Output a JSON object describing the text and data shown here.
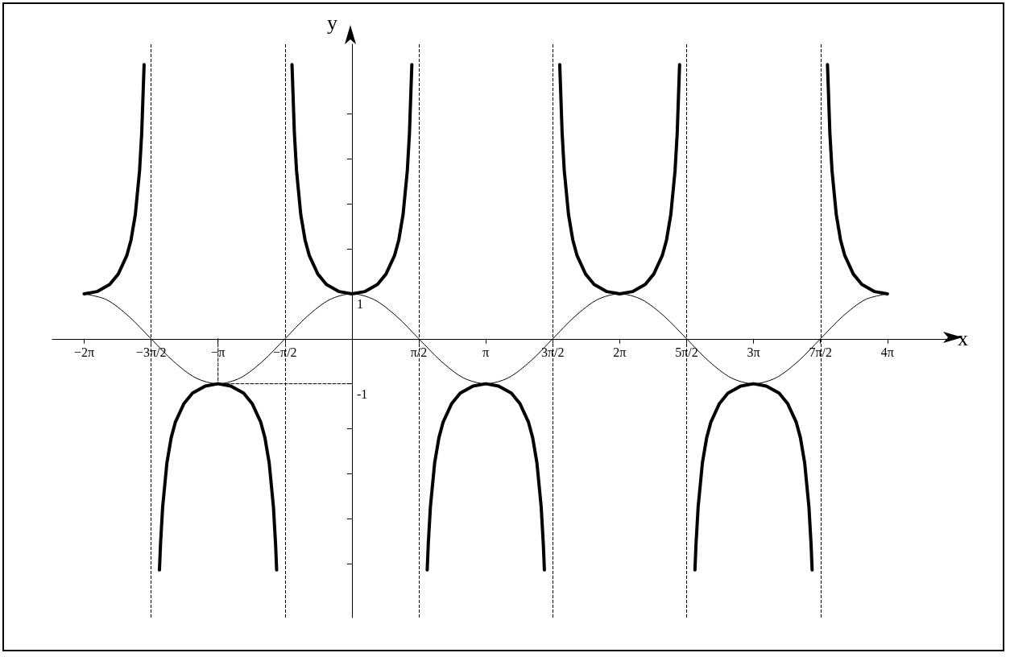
{
  "chart_data": {
    "type": "line",
    "xlabel": "x",
    "ylabel": "y",
    "xlim": [
      -7.03,
      13.95
    ],
    "ylim": [
      -6.2,
      6.55
    ],
    "xticks": [
      {
        "value": -6.2832,
        "label": "−2π"
      },
      {
        "value": -4.7124,
        "label": "−3π/2"
      },
      {
        "value": -3.1416,
        "label": "−π"
      },
      {
        "value": -1.5708,
        "label": "−π/2"
      },
      {
        "value": 1.5708,
        "label": "π/2"
      },
      {
        "value": 3.1416,
        "label": "π"
      },
      {
        "value": 4.7124,
        "label": "3π/2"
      },
      {
        "value": 6.2832,
        "label": "2π"
      },
      {
        "value": 7.854,
        "label": "5π/2"
      },
      {
        "value": 9.4248,
        "label": "3π"
      },
      {
        "value": 10.9956,
        "label": "7π/2"
      },
      {
        "value": 12.5664,
        "label": "4π"
      }
    ],
    "yticks": [
      {
        "value": -5,
        "label": null
      },
      {
        "value": -4,
        "label": null
      },
      {
        "value": -3,
        "label": null
      },
      {
        "value": -2,
        "label": null
      },
      {
        "value": -1,
        "label": "-1"
      },
      {
        "value": 1,
        "label": "1"
      },
      {
        "value": 2,
        "label": null
      },
      {
        "value": 3,
        "label": null
      },
      {
        "value": 4,
        "label": null
      },
      {
        "value": 5,
        "label": null
      }
    ],
    "grid": false,
    "marker": "none",
    "series": [
      {
        "color": "#000000",
        "line_style": "solid",
        "x": [
          -6.2832,
          -5.7596,
          -5.236,
          -4.7124,
          -4.1888,
          -3.6652,
          -3.1416,
          -2.618,
          -2.0944,
          -1.5708,
          -1.0472,
          -0.5236,
          0,
          0.5236,
          1.0472,
          1.5708,
          2.0944,
          2.618,
          3.1416,
          3.6652,
          4.1888,
          4.7124,
          5.236,
          5.7596,
          6.2832,
          6.8068,
          7.3304,
          7.854,
          8.3776,
          8.9012,
          9.4248,
          9.9484,
          10.472,
          10.9956,
          11.5192,
          12.0428,
          12.5664
        ],
        "values": [
          1,
          0.87,
          0.5,
          0,
          -0.5,
          -0.87,
          -1,
          -0.87,
          -0.5,
          0,
          0.5,
          0.87,
          1,
          0.87,
          0.5,
          0,
          -0.5,
          -0.87,
          -1,
          -0.87,
          -0.5,
          0,
          0.5,
          0.87,
          1,
          0.87,
          0.5,
          0,
          -0.5,
          -0.87,
          -1,
          -0.87,
          -0.5,
          0,
          0.5,
          0.87,
          1
        ]
      },
      {
        "color": "#000000",
        "line_style": "solid",
        "x": [
          -6.2832,
          -5.9832,
          -5.6832,
          -5.4832,
          -5.2832,
          -5.1832,
          -5.0832,
          -4.9832,
          -4.9332,
          -4.8769,
          -4.7124,
          -4.5166,
          -4.4916,
          -4.4416,
          -4.3416,
          -4.2416,
          -4.1416,
          -3.9416,
          -3.7416,
          -3.4416,
          -3.1416,
          -2.8416,
          -2.5416,
          -2.3416,
          -2.1416,
          -2.0416,
          -1.9416,
          -1.8416,
          -1.7916,
          -1.7666,
          -1.5708,
          -1.4063,
          -1.35,
          -1.3,
          -1.2,
          -1.1,
          -1.0,
          -0.8,
          -0.6,
          -0.3,
          0,
          0.3,
          0.6,
          0.8,
          1.0,
          1.1,
          1.2,
          1.3,
          1.35,
          1.4063,
          1.5708,
          1.7666,
          1.7916,
          1.8416,
          1.9416,
          2.0416,
          2.1416,
          2.3416,
          2.5416,
          2.8416,
          3.1416,
          3.4416,
          3.7416,
          3.9416,
          4.1416,
          4.2416,
          4.3416,
          4.4416,
          4.4916,
          4.5166,
          4.7124,
          4.8769,
          4.9332,
          4.9832,
          5.0832,
          5.1832,
          5.2832,
          5.4832,
          5.6832,
          5.9832,
          6.2832,
          6.5832,
          6.8832,
          7.0832,
          7.2832,
          7.3832,
          7.4832,
          7.5832,
          7.6332,
          7.6895,
          7.854,
          8.0498,
          8.0748,
          8.1248,
          8.2248,
          8.3248,
          8.4248,
          8.6248,
          8.8248,
          9.1248,
          9.4248,
          9.7248,
          10.0248,
          10.2248,
          10.4248,
          10.5248,
          10.6248,
          10.7248,
          10.7748,
          10.7998,
          10.9956,
          11.1601,
          11.2164,
          11.2664,
          11.3664,
          11.4664,
          11.5664,
          11.7664,
          11.9664,
          12.2664,
          12.5664
        ],
        "values": [
          1,
          1.05,
          1.21,
          1.44,
          1.85,
          2.2,
          2.76,
          3.74,
          4.57,
          6.1,
          null,
          -5.14,
          -4.57,
          -3.74,
          -2.76,
          -2.2,
          -1.85,
          -1.44,
          -1.21,
          -1.05,
          -1,
          -1.05,
          -1.21,
          -1.44,
          -1.85,
          -2.2,
          -2.76,
          -3.74,
          -4.57,
          -5.14,
          null,
          6.1,
          4.57,
          3.74,
          2.76,
          2.2,
          1.85,
          1.44,
          1.21,
          1.05,
          1,
          1.05,
          1.21,
          1.44,
          1.85,
          2.2,
          2.76,
          3.74,
          4.57,
          6.1,
          null,
          -5.14,
          -4.57,
          -3.74,
          -2.76,
          -2.2,
          -1.85,
          -1.44,
          -1.21,
          -1.05,
          -1,
          -1.05,
          -1.21,
          -1.44,
          -1.85,
          -2.2,
          -2.76,
          -3.74,
          -4.57,
          -5.14,
          null,
          6.1,
          4.57,
          3.74,
          2.76,
          2.2,
          1.85,
          1.44,
          1.21,
          1.05,
          1,
          1.05,
          1.21,
          1.44,
          1.85,
          2.2,
          2.76,
          3.74,
          4.57,
          6.1,
          null,
          -5.14,
          -4.57,
          -3.74,
          -2.76,
          -2.2,
          -1.85,
          -1.44,
          -1.21,
          -1.05,
          -1,
          -1.05,
          -1.21,
          -1.44,
          -1.85,
          -2.2,
          -2.76,
          -3.74,
          -4.57,
          -5.14,
          null,
          6.1,
          4.57,
          3.74,
          2.76,
          2.2,
          1.85,
          1.44,
          1.21,
          1.05,
          1
        ]
      },
      {
        "color": "#000000",
        "line_style": "dashed",
        "x": [
          -3.1416,
          -3.1416,
          0
        ],
        "values": [
          0,
          -1,
          -1
        ]
      }
    ],
    "ref_lines": [
      {
        "axis": "x",
        "value": -4.7124,
        "color": "#000000",
        "line_style": "dashed"
      },
      {
        "axis": "x",
        "value": -1.5708,
        "color": "#000000",
        "line_style": "dashed"
      },
      {
        "axis": "x",
        "value": 1.5708,
        "color": "#000000",
        "line_style": "dashed"
      },
      {
        "axis": "x",
        "value": 4.7124,
        "color": "#000000",
        "line_style": "dashed"
      },
      {
        "axis": "x",
        "value": 7.854,
        "color": "#000000",
        "line_style": "dashed"
      },
      {
        "axis": "x",
        "value": 10.9956,
        "color": "#000000",
        "line_style": "dashed"
      }
    ]
  }
}
